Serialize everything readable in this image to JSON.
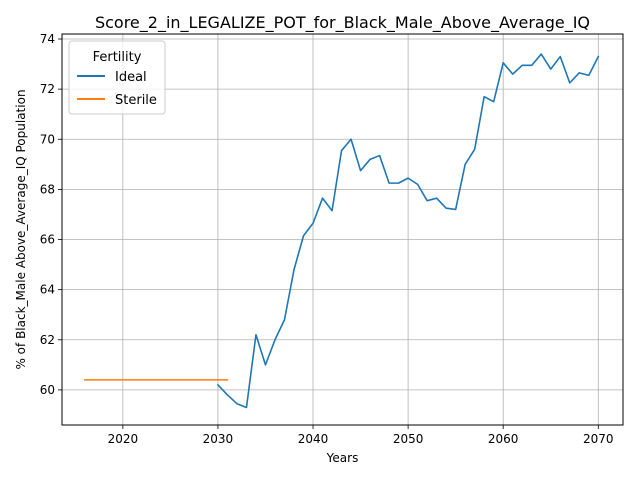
{
  "chart_data": {
    "type": "line",
    "title": "Score_2_in_LEGALIZE_POT_for_Black_Male_Above_Average_IQ",
    "xlabel": "Years",
    "ylabel": "% of Black_Male Above_Average_IQ Population",
    "xlim": [
      2013.6,
      2072.6
    ],
    "ylim": [
      58.6,
      74.2
    ],
    "xticks": [
      2020,
      2030,
      2040,
      2050,
      2060,
      2070
    ],
    "yticks": [
      60,
      62,
      64,
      66,
      68,
      70,
      72,
      74
    ],
    "grid": true,
    "legend": {
      "title": "Fertility",
      "position": "top-left"
    },
    "series": [
      {
        "name": "Ideal",
        "color": "#1f77b4",
        "x": [
          2030,
          2031,
          2032,
          2033,
          2034,
          2035,
          2036,
          2037,
          2038,
          2039,
          2040,
          2041,
          2042,
          2043,
          2044,
          2045,
          2046,
          2047,
          2048,
          2049,
          2050,
          2051,
          2052,
          2053,
          2054,
          2055,
          2056,
          2057,
          2058,
          2059,
          2060,
          2061,
          2062,
          2063,
          2064,
          2065,
          2066,
          2067,
          2068,
          2069,
          2070
        ],
        "y": [
          60.2,
          59.8,
          59.45,
          59.3,
          62.2,
          61.0,
          62.0,
          62.8,
          64.8,
          66.15,
          66.65,
          67.65,
          67.15,
          69.55,
          70.0,
          68.75,
          69.2,
          69.35,
          68.25,
          68.25,
          68.45,
          68.2,
          67.55,
          67.65,
          67.25,
          67.2,
          69.0,
          69.6,
          71.7,
          71.5,
          73.05,
          72.6,
          72.95,
          72.95,
          73.4,
          72.8,
          73.3,
          72.25,
          72.65,
          72.55,
          73.3
        ]
      },
      {
        "name": "Sterile",
        "color": "#ff7f0e",
        "x": [
          2016,
          2017,
          2018,
          2019,
          2020,
          2021,
          2022,
          2023,
          2024,
          2025,
          2026,
          2027,
          2028,
          2029,
          2030,
          2031
        ],
        "y": [
          60.4,
          60.4,
          60.4,
          60.4,
          60.4,
          60.4,
          60.4,
          60.4,
          60.4,
          60.4,
          60.4,
          60.4,
          60.4,
          60.4,
          60.4,
          60.4
        ]
      }
    ]
  }
}
